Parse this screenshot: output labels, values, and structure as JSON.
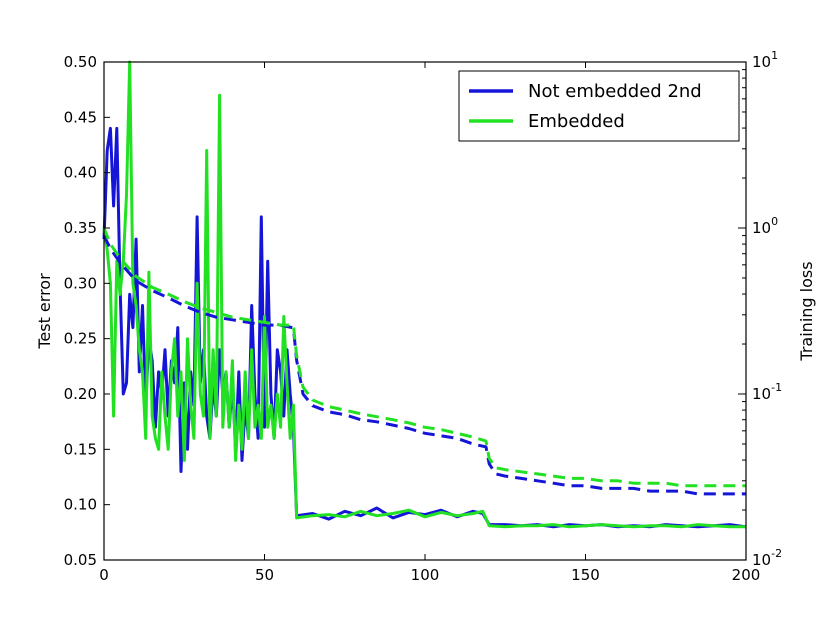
{
  "chart_data": {
    "type": "line",
    "xlabel": "",
    "ylabel_left": "Test error",
    "ylabel_right": "Training loss",
    "xlim": [
      0,
      200
    ],
    "ylim_left": [
      0.05,
      0.5
    ],
    "ylim_right": [
      0.01,
      10
    ],
    "right_scale": "log",
    "x_ticks": [
      "0",
      "50",
      "100",
      "150",
      "200"
    ],
    "y_left_ticks": [
      "0.05",
      "0.10",
      "0.15",
      "0.20",
      "0.25",
      "0.30",
      "0.35",
      "0.40",
      "0.45",
      "0.50"
    ],
    "y_right_ticks": [
      {
        "base": "10",
        "exp": "-2"
      },
      {
        "base": "10",
        "exp": "-1"
      },
      {
        "base": "10",
        "exp": "0"
      },
      {
        "base": "10",
        "exp": "1"
      }
    ],
    "legend": {
      "placement": "top-right",
      "entries": [
        {
          "name": "Not embedded 2nd",
          "color": "#1515d8"
        },
        {
          "name": "Embedded",
          "color": "#22e022"
        }
      ]
    },
    "grid": false,
    "series": [
      {
        "name": "Not embedded 2nd",
        "metric": "Test error",
        "axis": "left",
        "style": "solid",
        "color": "#1515d8",
        "x": [
          0,
          1,
          2,
          3,
          4,
          5,
          6,
          7,
          8,
          9,
          10,
          11,
          12,
          13,
          14,
          15,
          16,
          17,
          18,
          19,
          20,
          21,
          22,
          23,
          24,
          25,
          26,
          27,
          28,
          29,
          30,
          31,
          32,
          33,
          34,
          35,
          36,
          37,
          38,
          39,
          40,
          41,
          42,
          43,
          44,
          45,
          46,
          47,
          48,
          49,
          50,
          51,
          52,
          53,
          54,
          55,
          56,
          57,
          58,
          59,
          60,
          65,
          70,
          75,
          80,
          85,
          90,
          95,
          100,
          105,
          110,
          115,
          118,
          120,
          125,
          130,
          135,
          140,
          145,
          150,
          155,
          160,
          165,
          170,
          175,
          180,
          185,
          190,
          195,
          200
        ],
        "y": [
          0.34,
          0.42,
          0.44,
          0.37,
          0.44,
          0.3,
          0.2,
          0.21,
          0.29,
          0.26,
          0.34,
          0.22,
          0.28,
          0.19,
          0.25,
          0.23,
          0.17,
          0.22,
          0.2,
          0.24,
          0.18,
          0.23,
          0.21,
          0.26,
          0.13,
          0.21,
          0.15,
          0.22,
          0.19,
          0.36,
          0.21,
          0.24,
          0.18,
          0.16,
          0.21,
          0.18,
          0.24,
          0.2,
          0.22,
          0.17,
          0.21,
          0.15,
          0.22,
          0.14,
          0.19,
          0.16,
          0.28,
          0.2,
          0.16,
          0.36,
          0.17,
          0.32,
          0.2,
          0.16,
          0.24,
          0.22,
          0.18,
          0.24,
          0.2,
          0.17,
          0.09,
          0.092,
          0.087,
          0.094,
          0.09,
          0.097,
          0.088,
          0.093,
          0.091,
          0.095,
          0.089,
          0.094,
          0.092,
          0.082,
          0.082,
          0.081,
          0.082,
          0.08,
          0.082,
          0.081,
          0.082,
          0.08,
          0.081,
          0.08,
          0.082,
          0.081,
          0.08,
          0.081,
          0.082,
          0.08
        ]
      },
      {
        "name": "Embedded",
        "metric": "Test error",
        "axis": "left",
        "style": "solid",
        "color": "#22e022",
        "x": [
          0,
          1,
          2,
          3,
          4,
          5,
          6,
          7,
          8,
          9,
          10,
          11,
          12,
          13,
          14,
          15,
          16,
          17,
          18,
          19,
          20,
          21,
          22,
          23,
          24,
          25,
          26,
          27,
          28,
          29,
          30,
          31,
          32,
          33,
          34,
          35,
          36,
          37,
          38,
          39,
          40,
          41,
          42,
          43,
          44,
          45,
          46,
          47,
          48,
          49,
          50,
          51,
          52,
          53,
          54,
          55,
          56,
          57,
          58,
          59,
          60,
          65,
          70,
          75,
          80,
          85,
          90,
          95,
          100,
          105,
          110,
          115,
          118,
          120,
          125,
          130,
          135,
          140,
          145,
          150,
          155,
          160,
          165,
          170,
          175,
          180,
          185,
          190,
          195,
          200
        ],
        "y": [
          0.35,
          0.33,
          0.3,
          0.18,
          0.32,
          0.29,
          0.32,
          0.38,
          0.5,
          0.3,
          0.28,
          0.24,
          0.22,
          0.16,
          0.31,
          0.18,
          0.16,
          0.15,
          0.22,
          0.18,
          0.15,
          0.22,
          0.25,
          0.18,
          0.22,
          0.14,
          0.25,
          0.19,
          0.16,
          0.3,
          0.2,
          0.18,
          0.42,
          0.16,
          0.24,
          0.18,
          0.47,
          0.17,
          0.22,
          0.17,
          0.23,
          0.14,
          0.19,
          0.15,
          0.22,
          0.16,
          0.24,
          0.17,
          0.19,
          0.16,
          0.27,
          0.17,
          0.19,
          0.16,
          0.2,
          0.17,
          0.27,
          0.21,
          0.16,
          0.19,
          0.088,
          0.09,
          0.091,
          0.089,
          0.094,
          0.09,
          0.092,
          0.095,
          0.089,
          0.093,
          0.09,
          0.092,
          0.094,
          0.081,
          0.08,
          0.081,
          0.081,
          0.082,
          0.08,
          0.081,
          0.082,
          0.081,
          0.08,
          0.081,
          0.081,
          0.08,
          0.082,
          0.081,
          0.08,
          0.08
        ]
      },
      {
        "name": "Not embedded 2nd",
        "metric": "Training loss",
        "axis": "right",
        "style": "dashed",
        "color": "#1515d8",
        "x": [
          0,
          2,
          5,
          10,
          15,
          20,
          25,
          30,
          35,
          40,
          45,
          50,
          55,
          59,
          60,
          62,
          65,
          70,
          75,
          80,
          85,
          90,
          95,
          100,
          105,
          110,
          115,
          119,
          120,
          122,
          125,
          130,
          135,
          140,
          145,
          150,
          155,
          160,
          165,
          170,
          175,
          180,
          185,
          190,
          195,
          200
        ],
        "y": [
          0.9,
          0.75,
          0.62,
          0.48,
          0.42,
          0.38,
          0.34,
          0.31,
          0.29,
          0.28,
          0.27,
          0.26,
          0.26,
          0.25,
          0.16,
          0.1,
          0.085,
          0.078,
          0.075,
          0.07,
          0.068,
          0.065,
          0.062,
          0.058,
          0.056,
          0.054,
          0.05,
          0.048,
          0.038,
          0.033,
          0.032,
          0.031,
          0.03,
          0.029,
          0.028,
          0.028,
          0.027,
          0.027,
          0.027,
          0.026,
          0.026,
          0.026,
          0.025,
          0.025,
          0.025,
          0.025
        ]
      },
      {
        "name": "Embedded",
        "metric": "Training loss",
        "axis": "right",
        "style": "dashed",
        "color": "#22e022",
        "x": [
          0,
          2,
          5,
          10,
          15,
          20,
          25,
          30,
          35,
          40,
          45,
          50,
          55,
          59,
          60,
          62,
          65,
          70,
          75,
          80,
          85,
          90,
          95,
          100,
          105,
          110,
          115,
          119,
          120,
          122,
          125,
          130,
          135,
          140,
          145,
          150,
          155,
          160,
          165,
          170,
          175,
          180,
          185,
          190,
          195,
          200
        ],
        "y": [
          1.0,
          0.8,
          0.66,
          0.51,
          0.44,
          0.4,
          0.36,
          0.33,
          0.31,
          0.29,
          0.28,
          0.27,
          0.26,
          0.26,
          0.17,
          0.11,
          0.092,
          0.084,
          0.08,
          0.076,
          0.073,
          0.07,
          0.067,
          0.063,
          0.061,
          0.058,
          0.055,
          0.052,
          0.041,
          0.036,
          0.035,
          0.034,
          0.033,
          0.032,
          0.031,
          0.031,
          0.03,
          0.03,
          0.029,
          0.029,
          0.029,
          0.028,
          0.028,
          0.028,
          0.028,
          0.028
        ]
      }
    ]
  }
}
